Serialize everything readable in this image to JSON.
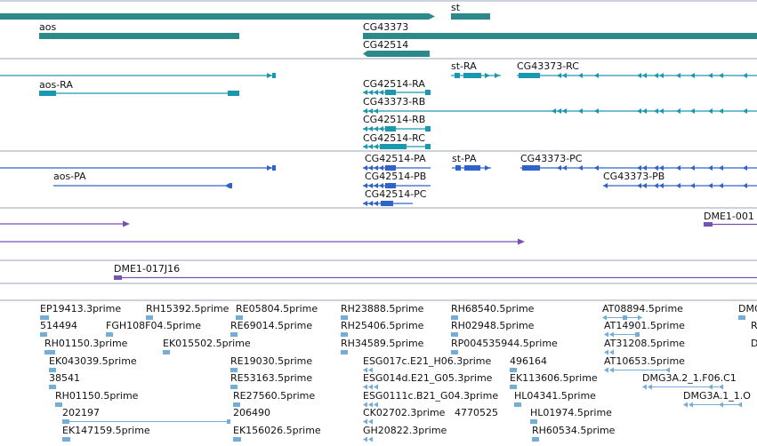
{
  "colors": {
    "gene": "#2e8a8a",
    "transcript": "#1a98b0",
    "protein": "#2e63c9",
    "clone": "#7851b5",
    "est": "#74aed6",
    "separator": "#9aa7b8",
    "text": "#111111"
  },
  "gene_track": {
    "labels": [
      "aos",
      "st",
      "CG43373",
      "CG42514"
    ]
  },
  "transcript_track": {
    "labels": [
      "aos-RA",
      "st-RA",
      "CG43373-RC",
      "CG42514-RA",
      "CG43373-RB",
      "CG42514-RB",
      "CG42514-RC"
    ]
  },
  "protein_track": {
    "labels": [
      "aos-PA",
      "st-PA",
      "CG43373-PC",
      "CG42514-PA",
      "CG42514-PB",
      "CG42514-PC",
      "CG43373-PB"
    ]
  },
  "clone_track": {
    "labels": [
      "DME1-001",
      "DME1-017J16"
    ]
  },
  "est_track": {
    "labels": [
      "EP19413.3prime",
      "514494",
      "RH01150.3prime",
      "EK043039.5prime",
      "38541",
      "RH01150.5prime",
      "202197",
      "EK147159.5prime",
      "RH15392.5prime",
      "FGH108F04.5prime",
      "EK015502.5prime",
      "RE05804.5prime",
      "RE69014.5prime",
      "RE19030.5prime",
      "RE53163.5prime",
      "RE27560.5prime",
      "206490",
      "EK156026.5prime",
      "RH23888.5prime",
      "RH25406.5prime",
      "RH34589.5prime",
      "ESG017c.E21_H06.3prime",
      "ESG014d.E21_G05.3prime",
      "ESG0111c.B21_G04.3prime",
      "CK02702.3prime",
      "GH20822.3prime",
      "RH68540.5prime",
      "RH02948.5prime",
      "RP004535944.5prime",
      "496164",
      "EK113606.5prime",
      "HL04341.5prime",
      "4770525",
      "HL01974.5prime",
      "RH60534.5prime",
      "AT08894.5prime",
      "AT14901.5prime",
      "AT31208.5prime",
      "AT10653.5prime",
      "DMG3A.2_1.F06.C1",
      "DMG3A.1_1.O",
      "DMG",
      "R",
      "D"
    ]
  }
}
